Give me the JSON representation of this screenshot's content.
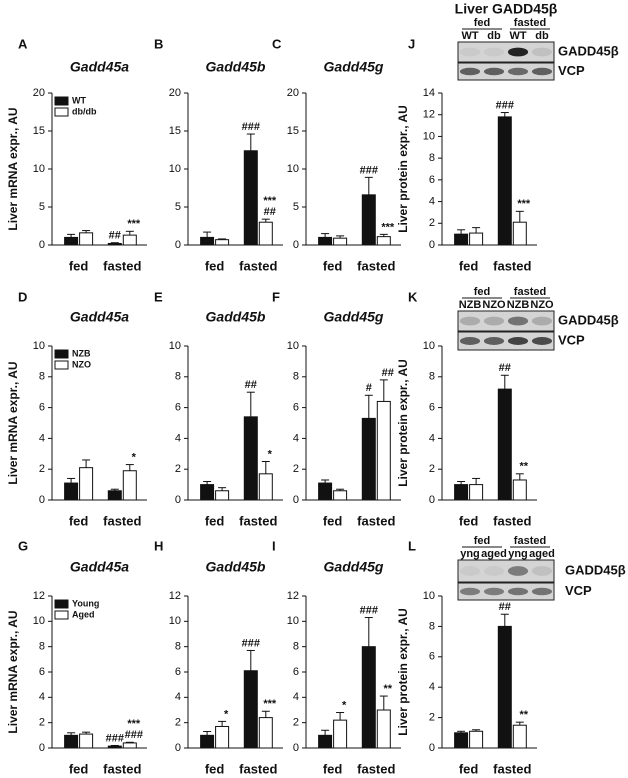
{
  "chart_data": [
    {
      "type": "bar",
      "letter": "A",
      "title": "Gadd45a",
      "y_label": "Liver mRNA expr., AU",
      "categories": [
        "fed",
        "fasted"
      ],
      "ylim": [
        0,
        20
      ],
      "yticks": [
        0,
        5,
        10,
        15,
        20
      ],
      "series": [
        {
          "name": "WT",
          "color": "#111111",
          "values": [
            1.0,
            0.2
          ],
          "errors": [
            0.4,
            0.1
          ],
          "annotations": [
            null,
            [
              "##"
            ]
          ]
        },
        {
          "name": "db/db",
          "color": "#ffffff",
          "values": [
            1.6,
            1.3
          ],
          "errors": [
            0.3,
            0.5
          ],
          "annotations": [
            null,
            [
              "***"
            ]
          ]
        }
      ]
    },
    {
      "type": "bar",
      "letter": "B",
      "title": "Gadd45b",
      "categories": [
        "fed",
        "fasted"
      ],
      "ylim": [
        0,
        20
      ],
      "yticks": [
        0,
        5,
        10,
        15,
        20
      ],
      "series": [
        {
          "color": "#111111",
          "values": [
            1.0,
            12.4
          ],
          "errors": [
            0.7,
            2.2
          ],
          "annotations": [
            null,
            [
              "###"
            ]
          ]
        },
        {
          "color": "#ffffff",
          "values": [
            0.7,
            3.0
          ],
          "errors": [
            0.1,
            0.4
          ],
          "annotations": [
            null,
            [
              "***",
              "##"
            ]
          ]
        }
      ]
    },
    {
      "type": "bar",
      "letter": "C",
      "title": "Gadd45g",
      "categories": [
        "fed",
        "fasted"
      ],
      "ylim": [
        0,
        20
      ],
      "yticks": [
        0,
        5,
        10,
        15,
        20
      ],
      "series": [
        {
          "color": "#111111",
          "values": [
            1.0,
            6.6
          ],
          "errors": [
            0.5,
            2.3
          ],
          "annotations": [
            null,
            [
              "###"
            ]
          ]
        },
        {
          "color": "#ffffff",
          "values": [
            0.9,
            1.1
          ],
          "errors": [
            0.3,
            0.3
          ],
          "annotations": [
            null,
            [
              "***"
            ]
          ]
        }
      ]
    },
    {
      "type": "bar",
      "letter": "J",
      "blot": {
        "title": "Liver GADD45β",
        "groups": [
          "fed",
          "fasted"
        ],
        "lanes": [
          "WT",
          "db",
          "WT",
          "db"
        ],
        "bands": [
          "GADD45β",
          "VCP"
        ]
      },
      "y_label": "Liver protein expr., AU",
      "categories": [
        "fed",
        "fasted"
      ],
      "ylim": [
        0,
        14
      ],
      "yticks": [
        0,
        2,
        4,
        6,
        8,
        10,
        12,
        14
      ],
      "series": [
        {
          "color": "#111111",
          "values": [
            1.0,
            11.8
          ],
          "errors": [
            0.4,
            0.4
          ],
          "annotations": [
            null,
            [
              "###"
            ]
          ]
        },
        {
          "color": "#ffffff",
          "values": [
            1.1,
            2.1
          ],
          "errors": [
            0.5,
            1.0
          ],
          "annotations": [
            null,
            [
              "***"
            ]
          ]
        }
      ]
    },
    {
      "type": "bar",
      "letter": "D",
      "title": "Gadd45a",
      "y_label": "Liver mRNA expr., AU",
      "categories": [
        "fed",
        "fasted"
      ],
      "ylim": [
        0,
        10
      ],
      "yticks": [
        0,
        2,
        4,
        6,
        8,
        10
      ],
      "series": [
        {
          "name": "NZB",
          "color": "#111111",
          "values": [
            1.1,
            0.6
          ],
          "errors": [
            0.3,
            0.1
          ],
          "annotations": [
            null,
            null
          ]
        },
        {
          "name": "NZO",
          "color": "#ffffff",
          "values": [
            2.1,
            1.9
          ],
          "errors": [
            0.5,
            0.4
          ],
          "annotations": [
            null,
            [
              "*"
            ]
          ]
        }
      ]
    },
    {
      "type": "bar",
      "letter": "E",
      "title": "Gadd45b",
      "categories": [
        "fed",
        "fasted"
      ],
      "ylim": [
        0,
        10
      ],
      "yticks": [
        0,
        2,
        4,
        6,
        8,
        10
      ],
      "series": [
        {
          "color": "#111111",
          "values": [
            1.0,
            5.4
          ],
          "errors": [
            0.2,
            1.6
          ],
          "annotations": [
            null,
            [
              "##"
            ]
          ]
        },
        {
          "color": "#ffffff",
          "values": [
            0.6,
            1.7
          ],
          "errors": [
            0.2,
            0.8
          ],
          "annotations": [
            null,
            [
              "*"
            ]
          ]
        }
      ]
    },
    {
      "type": "bar",
      "letter": "F",
      "title": "Gadd45g",
      "categories": [
        "fed",
        "fasted"
      ],
      "ylim": [
        0,
        10
      ],
      "yticks": [
        0,
        2,
        4,
        6,
        8,
        10
      ],
      "series": [
        {
          "color": "#111111",
          "values": [
            1.1,
            5.3
          ],
          "errors": [
            0.2,
            1.5
          ],
          "annotations": [
            null,
            [
              "#"
            ]
          ]
        },
        {
          "color": "#ffffff",
          "values": [
            0.6,
            6.4
          ],
          "errors": [
            0.1,
            1.4
          ],
          "annotations": [
            null,
            [
              "##"
            ]
          ]
        }
      ]
    },
    {
      "type": "bar",
      "letter": "K",
      "blot": {
        "groups": [
          "fed",
          "fasted"
        ],
        "lanes": [
          "NZB",
          "NZO",
          "NZB",
          "NZO"
        ],
        "bands": [
          "GADD45β",
          "VCP"
        ]
      },
      "y_label": "Liver protein expr., AU",
      "categories": [
        "fed",
        "fasted"
      ],
      "ylim": [
        0,
        10
      ],
      "yticks": [
        0,
        2,
        4,
        6,
        8,
        10
      ],
      "series": [
        {
          "color": "#111111",
          "values": [
            1.0,
            7.2
          ],
          "errors": [
            0.2,
            0.9
          ],
          "annotations": [
            null,
            [
              "##"
            ]
          ]
        },
        {
          "color": "#ffffff",
          "values": [
            1.0,
            1.3
          ],
          "errors": [
            0.4,
            0.4
          ],
          "annotations": [
            null,
            [
              "**"
            ]
          ]
        }
      ]
    },
    {
      "type": "bar",
      "letter": "G",
      "title": "Gadd45a",
      "y_label": "Liver mRNA expr., AU",
      "categories": [
        "fed",
        "fasted"
      ],
      "ylim": [
        0,
        12
      ],
      "yticks": [
        0,
        2,
        4,
        6,
        8,
        10,
        12
      ],
      "series": [
        {
          "name": "Young",
          "color": "#111111",
          "values": [
            1.0,
            0.15
          ],
          "errors": [
            0.2,
            0.05
          ],
          "annotations": [
            null,
            [
              "###"
            ]
          ]
        },
        {
          "name": "Aged",
          "color": "#ffffff",
          "values": [
            1.1,
            0.4
          ],
          "errors": [
            0.15,
            0.05
          ],
          "annotations": [
            null,
            [
              "***",
              "###"
            ]
          ]
        }
      ]
    },
    {
      "type": "bar",
      "letter": "H",
      "title": "Gadd45b",
      "categories": [
        "fed",
        "fasted"
      ],
      "ylim": [
        0,
        12
      ],
      "yticks": [
        0,
        2,
        4,
        6,
        8,
        10,
        12
      ],
      "series": [
        {
          "color": "#111111",
          "values": [
            1.0,
            6.1
          ],
          "errors": [
            0.3,
            1.6
          ],
          "annotations": [
            null,
            [
              "###"
            ]
          ]
        },
        {
          "color": "#ffffff",
          "values": [
            1.7,
            2.4
          ],
          "errors": [
            0.4,
            0.5
          ],
          "annotations": [
            [
              "*"
            ],
            [
              "***"
            ]
          ]
        }
      ]
    },
    {
      "type": "bar",
      "letter": "I",
      "title": "Gadd45g",
      "categories": [
        "fed",
        "fasted"
      ],
      "ylim": [
        0,
        12
      ],
      "yticks": [
        0,
        2,
        4,
        6,
        8,
        10,
        12
      ],
      "series": [
        {
          "color": "#111111",
          "values": [
            1.0,
            8.0
          ],
          "errors": [
            0.4,
            2.3
          ],
          "annotations": [
            null,
            [
              "###"
            ]
          ]
        },
        {
          "color": "#ffffff",
          "values": [
            2.2,
            3.0
          ],
          "errors": [
            0.6,
            1.1
          ],
          "annotations": [
            [
              "*"
            ],
            [
              "**"
            ]
          ]
        }
      ]
    },
    {
      "type": "bar",
      "letter": "L",
      "blot": {
        "groups": [
          "fed",
          "fasted"
        ],
        "lanes": [
          "yng",
          "aged",
          "yng",
          "aged"
        ],
        "bands": [
          "GADD45β",
          "VCP"
        ]
      },
      "y_label": "Liver protein expr., AU",
      "categories": [
        "fed",
        "fasted"
      ],
      "ylim": [
        0,
        10
      ],
      "yticks": [
        0,
        2,
        4,
        6,
        8,
        10
      ],
      "series": [
        {
          "color": "#111111",
          "values": [
            1.0,
            8.0
          ],
          "errors": [
            0.1,
            0.8
          ],
          "annotations": [
            null,
            [
              "##"
            ]
          ]
        },
        {
          "color": "#ffffff",
          "values": [
            1.1,
            1.5
          ],
          "errors": [
            0.1,
            0.2
          ],
          "annotations": [
            null,
            [
              "**"
            ]
          ]
        }
      ]
    }
  ]
}
